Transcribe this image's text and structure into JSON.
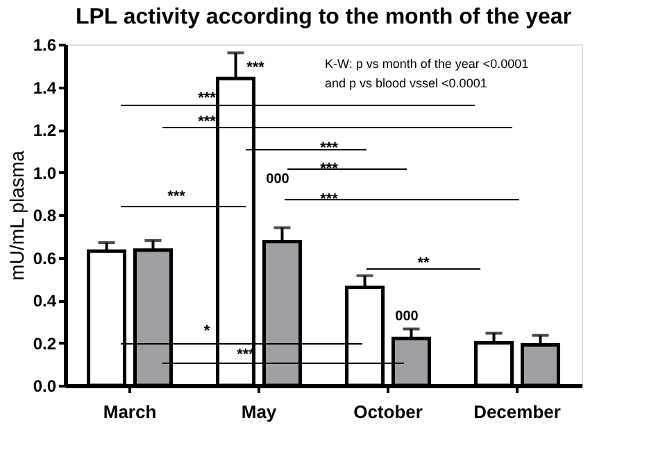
{
  "chart_data": {
    "type": "bar",
    "title": "LPL activity according to the month of the year",
    "ylabel": "mU/mL plasma",
    "categories": [
      "March",
      "May",
      "October",
      "December"
    ],
    "series": [
      {
        "color": "#ffffff",
        "values": [
          0.63,
          1.44,
          0.46,
          0.2
        ],
        "errors": [
          0.04,
          0.12,
          0.055,
          0.045
        ]
      },
      {
        "color": "#a0a0a4",
        "values": [
          0.635,
          0.675,
          0.22,
          0.19
        ],
        "errors": [
          0.045,
          0.065,
          0.045,
          0.045
        ]
      }
    ],
    "ylim": [
      0,
      1.6
    ],
    "yticks": [
      {
        "value": 0,
        "label": "0.0"
      },
      0.2,
      0.4,
      0.6,
      0.8,
      {
        "value": 1,
        "label": "1.0"
      },
      1.2,
      1.4,
      1.6
    ],
    "grid": false,
    "annotations": [
      "K-W: p vs month of the year <0.0001",
      "and p vs blood vssel <0.0001",
      "***",
      "***",
      "***",
      "***",
      "***",
      "***",
      "***",
      "*",
      "***",
      "**",
      "000",
      "000"
    ]
  }
}
